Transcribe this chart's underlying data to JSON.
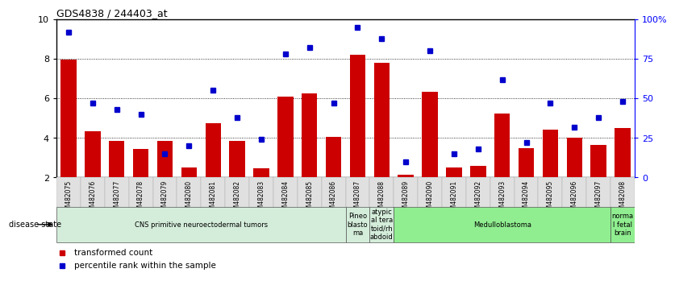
{
  "title": "GDS4838 / 244403_at",
  "samples": [
    "GSM482075",
    "GSM482076",
    "GSM482077",
    "GSM482078",
    "GSM482079",
    "GSM482080",
    "GSM482081",
    "GSM482082",
    "GSM482083",
    "GSM482084",
    "GSM482085",
    "GSM482086",
    "GSM482087",
    "GSM482088",
    "GSM482089",
    "GSM482090",
    "GSM482091",
    "GSM482092",
    "GSM482093",
    "GSM482094",
    "GSM482095",
    "GSM482096",
    "GSM482097",
    "GSM482098"
  ],
  "transformed_count": [
    7.95,
    4.35,
    3.85,
    3.45,
    3.85,
    2.5,
    4.75,
    3.85,
    2.45,
    6.1,
    6.25,
    4.05,
    8.2,
    7.8,
    2.15,
    6.35,
    2.5,
    2.6,
    5.25,
    3.5,
    4.4,
    4.0,
    3.65,
    4.5
  ],
  "percentile_rank": [
    92,
    47,
    43,
    40,
    15,
    20,
    55,
    38,
    24,
    78,
    82,
    47,
    95,
    88,
    10,
    80,
    15,
    18,
    62,
    22,
    47,
    32,
    38,
    48
  ],
  "ylim_left": [
    2,
    10
  ],
  "ylim_right": [
    0,
    100
  ],
  "yticks_left": [
    2,
    4,
    6,
    8,
    10
  ],
  "yticks_right": [
    0,
    25,
    50,
    75,
    100
  ],
  "ytick_labels_right": [
    "0",
    "25",
    "50",
    "75",
    "100%"
  ],
  "bar_color": "#cc0000",
  "dot_color": "#0000cc",
  "bg_color": "#f0f0f0",
  "plot_bg": "#ffffff",
  "disease_groups": [
    {
      "label": "CNS primitive neuroectodermal tumors",
      "start": 0,
      "end": 12,
      "color": "#d4edda"
    },
    {
      "label": "Pineo\nblasto\nma",
      "start": 12,
      "end": 13,
      "color": "#d4edda"
    },
    {
      "label": "atypic\nal tera\ntoid/rh\nabdoid",
      "start": 13,
      "end": 14,
      "color": "#d4edda"
    },
    {
      "label": "Medulloblastoma",
      "start": 14,
      "end": 23,
      "color": "#90ee90"
    },
    {
      "label": "norma\nl fetal\nbrain",
      "start": 23,
      "end": 24,
      "color": "#90ee90"
    }
  ],
  "legend_bar_label": "transformed count",
  "legend_dot_label": "percentile rank within the sample",
  "disease_state_label": "disease state"
}
